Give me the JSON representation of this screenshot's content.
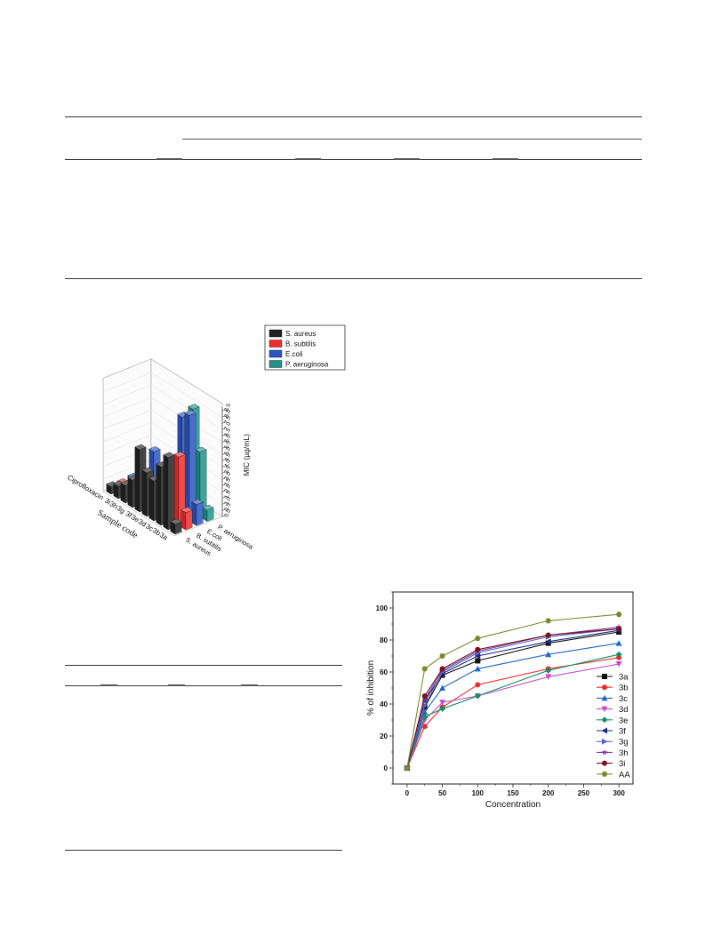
{
  "bar_chart_3d": {
    "chart_data": {
      "type": "bar",
      "subtype": "3d-bar",
      "title": "",
      "xlabel": "Sample code",
      "ylabel": "",
      "zlabel": "MIC (µg/mL)",
      "categories": [
        "3a",
        "3b",
        "3c",
        "3d",
        "3e",
        "3f",
        "3g",
        "3h",
        "3i",
        "Ciprofloxacin"
      ],
      "category_labels": [
        "3a",
        "3b",
        "3c",
        "3d",
        "3e",
        "3f",
        "3g",
        "3h",
        "3i",
        "Ciprofloxacin"
      ],
      "zticks": [
        "0.0",
        "0.5",
        "1.0",
        "1.5",
        "2.0",
        "2.5",
        "3.0",
        "3.5",
        "4.0",
        "4.5",
        "5.0",
        "5.5",
        "6.0",
        "6.5",
        "7.0",
        "7.5",
        "8.0",
        "8.5"
      ],
      "zlim": [
        0,
        8.5
      ],
      "series": [
        {
          "name": "S. aureus",
          "axis_label": "S. aureus",
          "color": "#222222",
          "values": [
            0.8,
            5.8,
            4.7,
            3.2,
            3.5,
            5.0,
            2.2,
            1.4,
            1.0,
            0.6
          ]
        },
        {
          "name": "B. subtilis",
          "axis_label": "B. subtilis",
          "color": "#ee2b2b",
          "values": [
            1.4,
            5.5,
            1.2,
            0.9,
            1.3,
            0.8,
            1.0,
            0.9,
            0.7,
            0.5
          ]
        },
        {
          "name": "E.coli",
          "axis_label": "E.coli",
          "color": "#2a55c2",
          "values": [
            1.7,
            8.5,
            8.0,
            1.5,
            1.2,
            1.8,
            3.8,
            1.0,
            0.8,
            0.6
          ]
        },
        {
          "name": "P. aeruginosa",
          "axis_label": "P. aeruginosa",
          "color": "#1d9489",
          "values": [
            0.9,
            5.2,
            8.3,
            1.6,
            3.3,
            1.6,
            1.4,
            0.8,
            0.7,
            0.5
          ]
        }
      ]
    }
  },
  "line_chart": {
    "chart_data": {
      "type": "line",
      "title": "",
      "xlabel": "Concentration",
      "ylabel": "% of inhibition",
      "xlim": [
        -20,
        320
      ],
      "ylim": [
        -10,
        110
      ],
      "xticks": [
        0,
        50,
        100,
        150,
        200,
        250,
        300
      ],
      "yticks": [
        0,
        20,
        40,
        60,
        80,
        100
      ],
      "x": [
        0,
        25,
        50,
        100,
        200,
        300
      ],
      "legend_position": "bottom-right",
      "series": [
        {
          "name": "3a",
          "color": "#111111",
          "marker": "square",
          "values": [
            0,
            38,
            58,
            67,
            78,
            85
          ]
        },
        {
          "name": "3b",
          "color": "#ee2b2b",
          "marker": "circle",
          "values": [
            0,
            26,
            38,
            52,
            62,
            69
          ]
        },
        {
          "name": "3c",
          "color": "#2166c4",
          "marker": "triangle-up",
          "values": [
            0,
            35,
            50,
            62,
            71,
            78
          ]
        },
        {
          "name": "3d",
          "color": "#c848c8",
          "marker": "triangle-down",
          "values": [
            0,
            30,
            41,
            45,
            57,
            65
          ]
        },
        {
          "name": "3e",
          "color": "#139061",
          "marker": "diamond",
          "values": [
            0,
            32,
            37,
            45,
            61,
            71
          ]
        },
        {
          "name": "3f",
          "color": "#1c2d7a",
          "marker": "triangle-left",
          "values": [
            0,
            42,
            59,
            70,
            79,
            86
          ]
        },
        {
          "name": "3g",
          "color": "#5765c4",
          "marker": "triangle-right",
          "values": [
            0,
            39,
            60,
            72,
            82,
            87
          ]
        },
        {
          "name": "3h",
          "color": "#7a3ca3",
          "marker": "star",
          "values": [
            0,
            43,
            61,
            73,
            83,
            88
          ]
        },
        {
          "name": "3i",
          "color": "#7a1020",
          "marker": "circle",
          "values": [
            0,
            45,
            62,
            74,
            83,
            87
          ]
        },
        {
          "name": "AA",
          "color": "#7a8a2a",
          "marker": "hexagon",
          "values": [
            0,
            62,
            70,
            81,
            92,
            96
          ]
        }
      ]
    }
  }
}
